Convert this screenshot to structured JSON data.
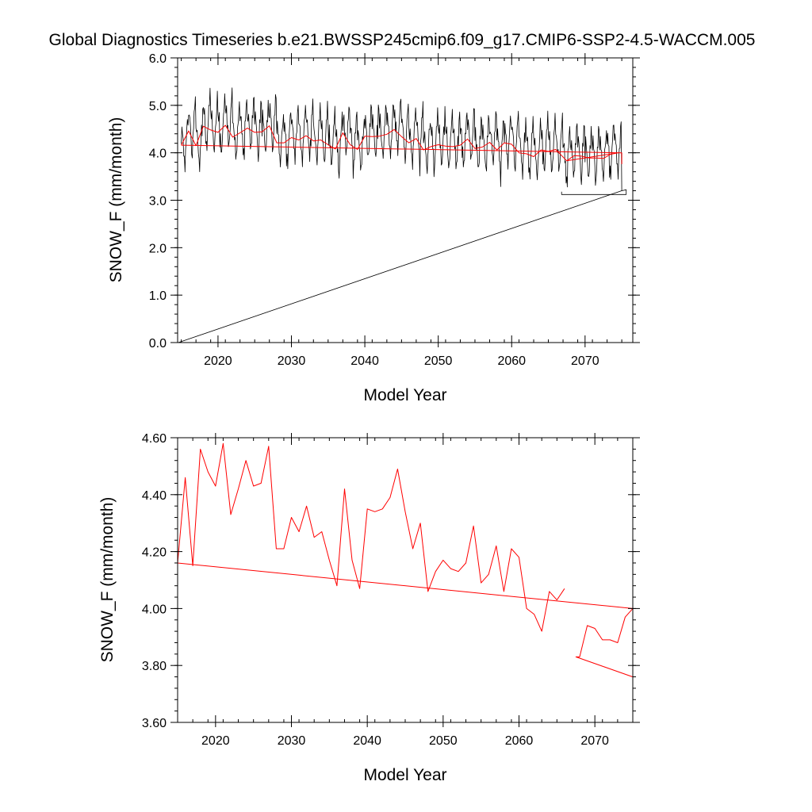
{
  "title": "Global Diagnostics Timeseries b.e21.BWSSP245cmip6.f09_g17.CMIP6-SSP2-4.5-WACCM.005",
  "colors": {
    "monthly": "#000000",
    "annual": "#ff0000",
    "trend": "#ff0000",
    "frame": "#000000"
  },
  "chart_data": [
    {
      "type": "line",
      "ylabel": "SNOW_F (mm/month)",
      "xlabel": "Model Year",
      "xlim": [
        2014.5,
        2076.5
      ],
      "ylim": [
        0.0,
        6.0
      ],
      "x_ticks": [
        2020,
        2030,
        2040,
        2050,
        2060,
        2070
      ],
      "x_tick_labels": [
        "2020",
        "2030",
        "2040",
        "2050",
        "2060",
        "2070"
      ],
      "y_ticks": [
        0.0,
        1.0,
        2.0,
        3.0,
        4.0,
        5.0,
        6.0
      ],
      "y_tick_labels": [
        "0.0",
        "1.0",
        "2.0",
        "3.0",
        "4.0",
        "5.0",
        "6.0"
      ],
      "series": [
        {
          "name": "monthly",
          "color": "#000000",
          "start_year": 2015.0,
          "annual_means": [
            4.16,
            4.46,
            4.15,
            4.56,
            4.48,
            4.43,
            4.58,
            4.33,
            4.42,
            4.52,
            4.43,
            4.44,
            4.57,
            4.21,
            4.21,
            4.32,
            4.27,
            4.36,
            4.25,
            4.27,
            4.17,
            4.08,
            4.42,
            4.17,
            4.07,
            4.35,
            4.34,
            4.35,
            4.39,
            4.49,
            4.34,
            4.21,
            4.3,
            4.06,
            4.13,
            4.17,
            4.14,
            4.13,
            4.16,
            4.29,
            4.09,
            4.12,
            4.22,
            4.06,
            4.21,
            4.18,
            4.0,
            3.98,
            3.92,
            4.06,
            4.03,
            4.07,
            3.83,
            3.94,
            3.93,
            3.89,
            3.89,
            3.88,
            3.97,
            4.0
          ],
          "seasonal_pattern": [
            0.28,
            0.35,
            0.3,
            0.05,
            -0.12,
            -0.35,
            -0.45,
            -0.2,
            0.15,
            0.32,
            0.55,
            0.7
          ],
          "wrap_points": [
            [
              2075.0,
              3.2
            ],
            [
              2075.6,
              3.22
            ],
            [
              2075.6,
              3.12
            ],
            [
              2066.8,
              3.12
            ],
            [
              2066.8,
              3.18
            ]
          ],
          "tail_line": [
            [
              2014.6,
              0.0
            ],
            [
              2075.0,
              3.2
            ]
          ]
        },
        {
          "name": "annual",
          "color": "#ff0000",
          "x": [
            2015.0,
            2016.0,
            2017.0,
            2018.0,
            2019.0,
            2020.0,
            2021.0,
            2022.0,
            2023.0,
            2024.0,
            2025.0,
            2026.0,
            2027.0,
            2028.0,
            2029.0,
            2030.0,
            2031.0,
            2032.0,
            2033.0,
            2034.0,
            2035.0,
            2036.0,
            2037.0,
            2038.0,
            2039.0,
            2040.0,
            2041.0,
            2042.0,
            2043.0,
            2044.0,
            2045.0,
            2046.0,
            2047.0,
            2048.0,
            2049.0,
            2050.0,
            2051.0,
            2052.0,
            2053.0,
            2054.0,
            2055.0,
            2056.0,
            2057.0,
            2058.0,
            2059.0,
            2060.0,
            2061.0,
            2062.0,
            2063.0,
            2064.0,
            2065.0,
            2066.0,
            2067.5,
            2068.5,
            2069.5,
            2070.5,
            2071.5,
            2072.5,
            2073.5,
            2074.5,
            2067.5
          ],
          "values": [
            4.16,
            4.46,
            4.15,
            4.56,
            4.48,
            4.43,
            4.58,
            4.33,
            4.42,
            4.52,
            4.43,
            4.44,
            4.57,
            4.21,
            4.21,
            4.32,
            4.27,
            4.36,
            4.25,
            4.27,
            4.17,
            4.08,
            4.42,
            4.17,
            4.07,
            4.35,
            4.34,
            4.35,
            4.39,
            4.49,
            4.34,
            4.21,
            4.3,
            4.06,
            4.13,
            4.17,
            4.14,
            4.13,
            4.16,
            4.29,
            4.09,
            4.12,
            4.22,
            4.06,
            4.21,
            4.18,
            4.0,
            3.98,
            3.92,
            4.06,
            4.03,
            4.07,
            3.83,
            3.94,
            3.93,
            3.89,
            3.89,
            3.88,
            3.97,
            4.0,
            3.83
          ]
        },
        {
          "name": "trend",
          "color": "#ff0000",
          "x": [
            2015.0,
            2075.0,
            2075.0
          ],
          "values": [
            4.16,
            4.0,
            3.76
          ]
        }
      ]
    },
    {
      "type": "line",
      "ylabel": "SNOW_F (mm/month)",
      "xlabel": "Model Year",
      "xlim": [
        2015.0,
        2075.0
      ],
      "ylim": [
        3.6,
        4.6
      ],
      "x_ticks": [
        2020,
        2030,
        2040,
        2050,
        2060,
        2070
      ],
      "x_tick_labels": [
        "2020",
        "2030",
        "2040",
        "2050",
        "2060",
        "2070"
      ],
      "y_ticks": [
        3.6,
        3.8,
        4.0,
        4.2,
        4.4,
        4.6
      ],
      "y_tick_labels": [
        "3.60",
        "3.80",
        "4.00",
        "4.20",
        "4.40",
        "4.60"
      ],
      "series": [
        {
          "name": "annual",
          "color": "#ff0000",
          "x": [
            2015.0,
            2016.0,
            2017.0,
            2018.0,
            2019.0,
            2020.0,
            2021.0,
            2022.0,
            2023.0,
            2024.0,
            2025.0,
            2026.0,
            2027.0,
            2028.0,
            2029.0,
            2030.0,
            2031.0,
            2032.0,
            2033.0,
            2034.0,
            2035.0,
            2036.0,
            2037.0,
            2038.0,
            2039.0,
            2040.0,
            2041.0,
            2042.0,
            2043.0,
            2044.0,
            2045.0,
            2046.0,
            2047.0,
            2048.0,
            2049.0,
            2050.0,
            2051.0,
            2052.0,
            2053.0,
            2054.0,
            2055.0,
            2056.0,
            2057.0,
            2058.0,
            2059.0,
            2060.0,
            2061.0,
            2062.0,
            2063.0,
            2064.0,
            2065.0,
            2066.0
          ],
          "values": [
            4.16,
            4.46,
            4.15,
            4.56,
            4.48,
            4.43,
            4.58,
            4.33,
            4.42,
            4.52,
            4.43,
            4.44,
            4.57,
            4.21,
            4.21,
            4.32,
            4.27,
            4.36,
            4.25,
            4.27,
            4.17,
            4.08,
            4.42,
            4.17,
            4.07,
            4.35,
            4.34,
            4.35,
            4.39,
            4.49,
            4.34,
            4.21,
            4.3,
            4.06,
            4.13,
            4.17,
            4.14,
            4.13,
            4.16,
            4.29,
            4.09,
            4.12,
            4.22,
            4.06,
            4.21,
            4.18,
            4.0,
            3.98,
            3.92,
            4.06,
            4.03,
            4.07
          ]
        },
        {
          "name": "annual-tail",
          "color": "#ff0000",
          "x": [
            2075.0,
            2074.0,
            2073.0,
            2072.0,
            2071.0,
            2070.0,
            2069.0,
            2068.0,
            2067.5,
            2075.0
          ],
          "values": [
            4.0,
            3.97,
            3.88,
            3.89,
            3.89,
            3.93,
            3.94,
            3.83,
            3.83,
            3.76
          ]
        },
        {
          "name": "trend",
          "color": "#ff0000",
          "x": [
            2015.0,
            2075.0
          ],
          "values": [
            4.16,
            4.0
          ]
        }
      ]
    }
  ]
}
